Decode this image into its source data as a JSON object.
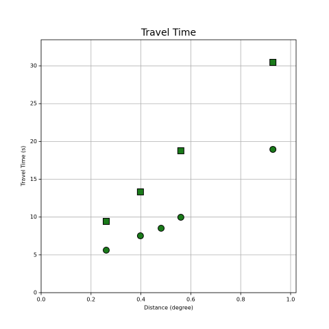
{
  "chart_data": {
    "type": "scatter",
    "title": "Travel Time",
    "x_label": "Distance (degree)",
    "y_label": "Travel Time (s)",
    "series": [
      {
        "marker": "circle",
        "color": "#1a7a1a",
        "edge_color": "#000000",
        "x": [
          0.261,
          0.398,
          0.481,
          0.56,
          0.929
        ],
        "values": [
          5.62,
          7.52,
          8.52,
          9.97,
          18.95
        ]
      },
      {
        "marker": "square",
        "color": "#1a7a1a",
        "edge_color": "#000000",
        "x": [
          0.261,
          0.398,
          0.56,
          0.929
        ],
        "values": [
          9.43,
          13.33,
          18.77,
          30.46
        ]
      }
    ],
    "xlim": [
      0,
      1.022
    ],
    "ylim": [
      0,
      33.45
    ],
    "xticks": [
      {
        "value": 0,
        "label": "0.0"
      },
      {
        "value": 0.2,
        "label": "0.2"
      },
      {
        "value": 0.4,
        "label": "0.4"
      },
      {
        "value": 0.6,
        "label": "0.6"
      },
      {
        "value": 0.8,
        "label": "0.8"
      },
      {
        "value": 1,
        "label": "1.0"
      }
    ],
    "yticks": [
      0,
      5,
      10,
      15,
      20,
      25,
      30
    ],
    "grid": true
  }
}
